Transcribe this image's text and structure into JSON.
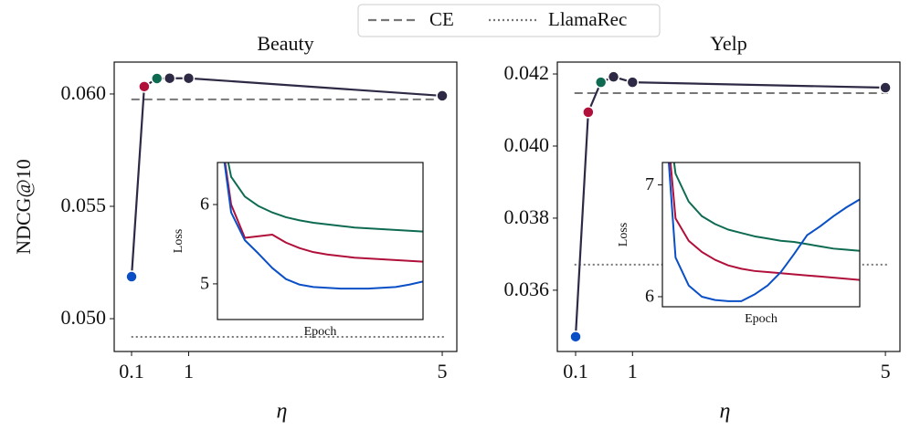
{
  "legend": {
    "entries": [
      {
        "name": "CE",
        "style": "dashed",
        "color": "#777777"
      },
      {
        "name": "LlamaRec",
        "style": "dotted",
        "color": "#777777"
      }
    ]
  },
  "chart_data": [
    {
      "type": "line",
      "title": "Beauty",
      "xlabel": "η",
      "ylabel": "NDCG@10",
      "x": [
        0.1,
        0.3,
        0.5,
        0.7,
        1,
        5
      ],
      "values": [
        0.05187,
        0.06033,
        0.06069,
        0.0607,
        0.0607,
        0.05992
      ],
      "color": "#2e2a45",
      "point_colors": [
        "#0a4fc6",
        "#b0103a",
        "#0e6b52",
        "#2e2a45",
        "#2e2a45",
        "#2e2a45"
      ],
      "reference_lines": [
        {
          "value": 0.05976
        },
        {
          "value": 0.04919
        }
      ],
      "xlim": [
        -0.174,
        5.23
      ],
      "xticks": [
        0.1,
        1,
        5
      ],
      "ylim": [
        0.04854,
        0.06142
      ],
      "yticks": [
        {
          "value": 0.05,
          "label": "0.050"
        },
        0.055,
        {
          "value": 0.06,
          "label": "0.060"
        }
      ]
    },
    {
      "type": "line",
      "xlabel": "Epoch",
      "ylabel": "Loss",
      "x": [
        0,
        1,
        2,
        3,
        4,
        5,
        6,
        7,
        8,
        9,
        10,
        11,
        12,
        13,
        14,
        15
      ],
      "series": [
        {
          "color": "#0e6b52",
          "values": [
            7.2,
            6.35,
            6.1,
            5.98,
            5.9,
            5.84,
            5.8,
            5.77,
            5.75,
            5.73,
            5.71,
            5.7,
            5.69,
            5.68,
            5.67,
            5.66
          ]
        },
        {
          "color": "#b0103a",
          "values": [
            7.2,
            6.0,
            5.58,
            5.6,
            5.62,
            5.52,
            5.45,
            5.4,
            5.37,
            5.35,
            5.33,
            5.32,
            5.31,
            5.3,
            5.29,
            5.28
          ]
        },
        {
          "color": "#0a4fc6",
          "values": [
            7.2,
            5.9,
            5.55,
            5.38,
            5.2,
            5.06,
            4.99,
            4.96,
            4.95,
            4.94,
            4.94,
            4.94,
            4.95,
            4.96,
            4.99,
            5.03
          ]
        }
      ],
      "xlim": [
        0,
        15
      ],
      "ylim": [
        4.55,
        6.53
      ],
      "yticks": [
        5,
        6
      ]
    },
    {
      "type": "line",
      "title": "Yelp",
      "xlabel": "η",
      "x": [
        0.1,
        0.3,
        0.5,
        0.7,
        1,
        5
      ],
      "values": [
        0.03471,
        0.04094,
        0.04177,
        0.04192,
        0.04177,
        0.04162
      ],
      "color": "#2e2a45",
      "point_colors": [
        "#0a4fc6",
        "#b0103a",
        "#0e6b52",
        "#2e2a45",
        "#2e2a45",
        "#2e2a45"
      ],
      "reference_lines": [
        {
          "value": 0.04147
        },
        {
          "value": 0.03671
        }
      ],
      "xlim": [
        -0.189,
        5.23
      ],
      "xticks": [
        0.1,
        1,
        5
      ],
      "ylim": [
        0.0343,
        0.04233
      ],
      "yticks": [
        0.036,
        0.038,
        {
          "value": 0.04,
          "label": "0.040"
        },
        0.042
      ]
    },
    {
      "type": "line",
      "xlabel": "Epoch",
      "ylabel": "Loss",
      "x": [
        0,
        1,
        2,
        3,
        4,
        5,
        6,
        7,
        8,
        9,
        10,
        11,
        12,
        13,
        14,
        15
      ],
      "series": [
        {
          "color": "#0e6b52",
          "values": [
            8,
            7.1,
            6.85,
            6.72,
            6.65,
            6.6,
            6.57,
            6.54,
            6.52,
            6.5,
            6.49,
            6.47,
            6.45,
            6.43,
            6.42,
            6.41
          ]
        },
        {
          "color": "#b0103a",
          "values": [
            8,
            6.7,
            6.5,
            6.4,
            6.33,
            6.28,
            6.25,
            6.23,
            6.22,
            6.21,
            6.2,
            6.19,
            6.18,
            6.17,
            6.16,
            6.15
          ]
        },
        {
          "color": "#0a4fc6",
          "values": [
            8,
            6.35,
            6.1,
            6.0,
            5.97,
            5.96,
            5.96,
            6.02,
            6.1,
            6.22,
            6.38,
            6.55,
            6.63,
            6.72,
            6.8,
            6.87
          ]
        }
      ],
      "xlim": [
        0,
        15
      ],
      "ylim": [
        5.91,
        7.2
      ],
      "yticks": [
        6,
        7
      ]
    }
  ]
}
